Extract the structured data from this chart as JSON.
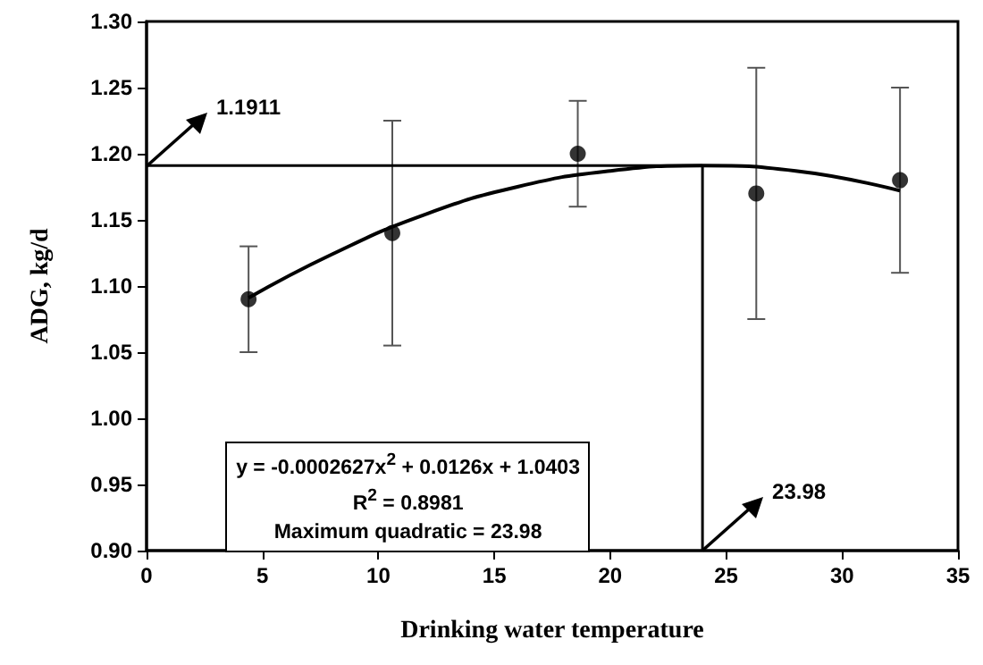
{
  "chart_data": {
    "type": "scatter",
    "xlabel": "Drinking water temperature",
    "ylabel": "ADG, kg/d",
    "xlim": [
      0,
      35
    ],
    "xticks": [
      0,
      5,
      10,
      15,
      20,
      25,
      30,
      35
    ],
    "ylim": [
      0.9,
      1.3
    ],
    "yticks": [
      {
        "value": 0.9,
        "label": "0.90"
      },
      0.95,
      {
        "value": 1.0,
        "label": "1.00"
      },
      1.05,
      {
        "value": 1.1,
        "label": "1.10"
      },
      1.15,
      {
        "value": 1.2,
        "label": "1.20"
      },
      1.25,
      {
        "value": 1.3,
        "label": "1.30"
      }
    ],
    "grid": false,
    "marker": "circle",
    "series": [
      {
        "type": "scatter",
        "color": "#000000",
        "x": [
          4.4,
          10.6,
          18.6,
          26.3,
          32.5
        ],
        "values": [
          1.09,
          1.14,
          1.2,
          1.17,
          1.18
        ],
        "errors": [
          [
            1.05,
            1.13
          ],
          [
            1.055,
            1.225
          ],
          [
            1.16,
            1.24
          ],
          [
            1.075,
            1.265
          ],
          [
            1.11,
            1.25
          ]
        ]
      },
      {
        "type": "line",
        "color": "#000000",
        "marker": "none",
        "line_style": "solid",
        "x": [
          4.4,
          8,
          12,
          16,
          20,
          23.98,
          28,
          32.5
        ],
        "values": [
          1.091,
          1.124,
          1.154,
          1.175,
          1.187,
          1.191,
          1.187,
          1.172
        ]
      }
    ],
    "ref_lines": [
      {
        "axis": "y",
        "value": 1.1911,
        "label": "1.1911",
        "color": "#000000"
      },
      {
        "axis": "x",
        "value": 23.98,
        "label": "23.98",
        "color": "#000000"
      }
    ],
    "annotations": [
      "y = -0.0002627x$^{2}$ + 0.0126x + 1.0403",
      "R$^{2}$ = 0.8981",
      "Maximum quadratic = 23.98"
    ]
  }
}
